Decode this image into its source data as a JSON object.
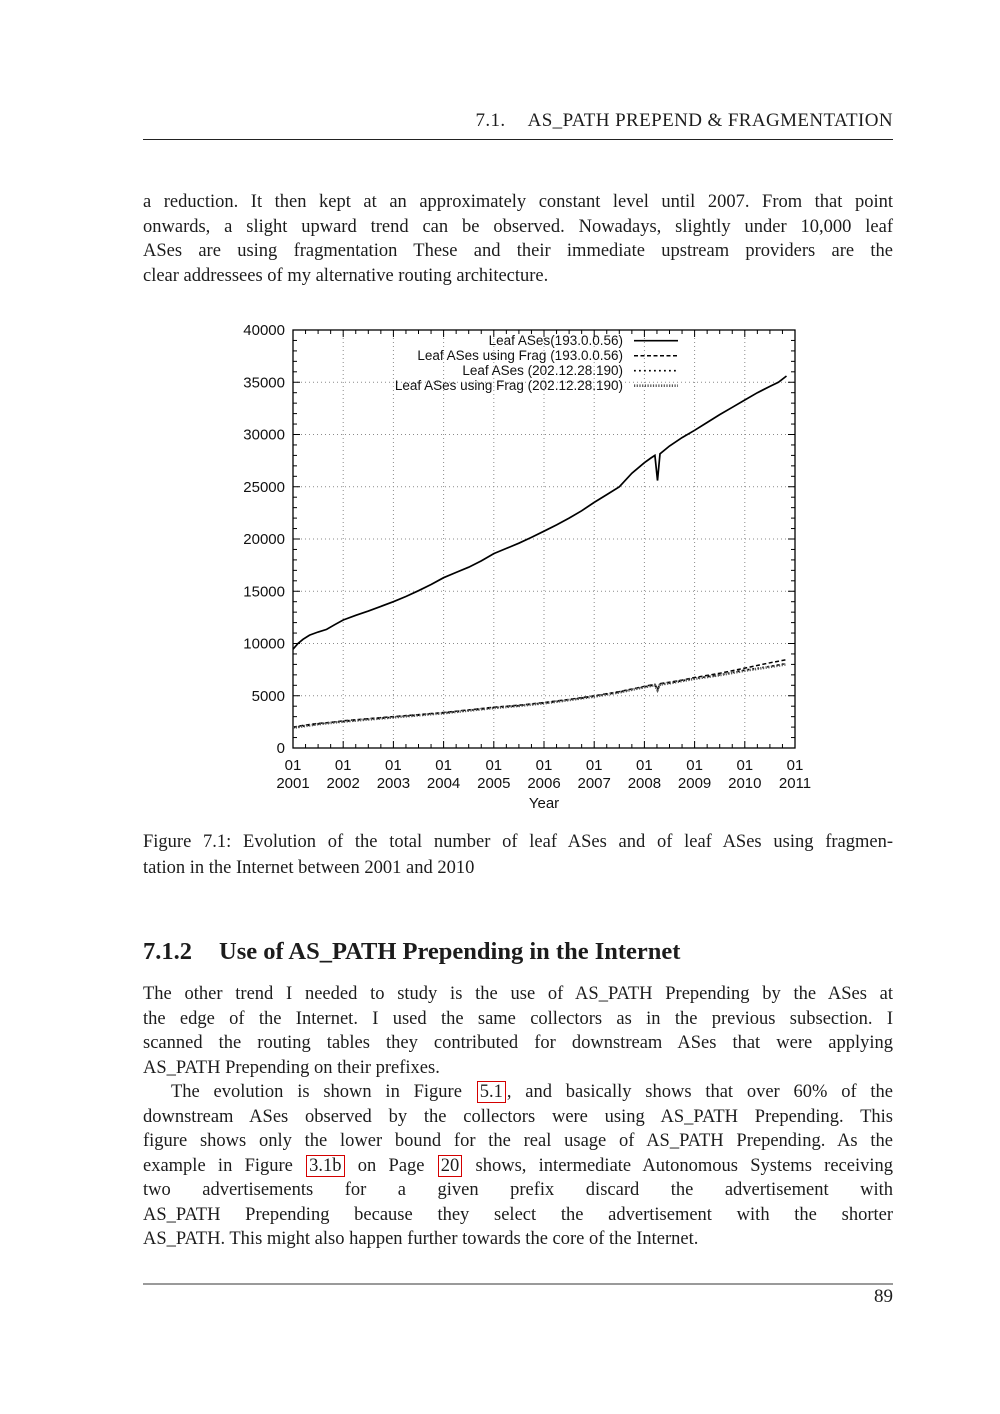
{
  "header": {
    "section_number": "7.1.",
    "title": "AS_PATH PREPEND & FRAGMENTATION"
  },
  "footer": {
    "page_number": "89"
  },
  "colors": {
    "text": "#1c1c1c",
    "link_box": "#d40000",
    "footer_rule": "#9a9a9a",
    "header_rule": "#222222",
    "grid": "#8a8a8a",
    "densedot_line": "#555555"
  },
  "paragraphs": {
    "p1": {
      "lines": [
        {
          "segments": [
            {
              "t": "a reduction. It then kept at an approximately constant level until 2007. From that point"
            }
          ]
        },
        {
          "segments": [
            {
              "t": "onwards, a slight upward trend can be observed. Nowadays, slightly under 10,000 leaf"
            }
          ]
        },
        {
          "segments": [
            {
              "t": "ASes are using fragmentation These and their immediate upstream providers are the"
            }
          ]
        },
        {
          "segments": [
            {
              "t": "clear addressees of my alternative routing architecture."
            }
          ]
        }
      ]
    },
    "p2": {
      "lines": [
        {
          "segments": [
            {
              "t": "The other trend I needed to study is the use of AS_PATH Prepending by the ASes at"
            }
          ]
        },
        {
          "segments": [
            {
              "t": "the edge of the Internet. I used the same collectors as in the previous subsection. I"
            }
          ]
        },
        {
          "segments": [
            {
              "t": "scanned the routing tables they contributed for downstream ASes that were applying"
            }
          ]
        },
        {
          "segments": [
            {
              "t": "AS_PATH Prepending on their prefixes."
            }
          ]
        }
      ]
    },
    "p3": {
      "lines": [
        {
          "indent": true,
          "segments": [
            {
              "t": "The evolution is shown in Figure "
            },
            {
              "t": "5.1",
              "ref": true
            },
            {
              "t": ", and basically shows that over 60% of the"
            }
          ]
        },
        {
          "segments": [
            {
              "t": "downstream ASes observed by the collectors were using AS_PATH Prepending. This"
            }
          ]
        },
        {
          "segments": [
            {
              "t": "figure shows only the lower bound for the real usage of AS_PATH Prepending. As the"
            }
          ]
        },
        {
          "segments": [
            {
              "t": "example in Figure "
            },
            {
              "t": "3.1b",
              "ref": true
            },
            {
              "t": " on Page "
            },
            {
              "t": "20",
              "ref": true
            },
            {
              "t": " shows, intermediate Autonomous Systems receiving"
            }
          ]
        },
        {
          "segments": [
            {
              "t": "two advertisements for a given prefix discard the advertisement with"
            }
          ]
        },
        {
          "segments": [
            {
              "t": "AS_PATH Prepending because they select the advertisement with the shorter"
            }
          ]
        },
        {
          "segments": [
            {
              "t": "AS_PATH. This might also happen further towards the core of the Internet."
            }
          ]
        }
      ]
    }
  },
  "figure": {
    "caption": {
      "lines": [
        {
          "segments": [
            {
              "t": "Figure 7.1: Evolution of the total number of leaf ASes and of leaf ASes using fragmen-"
            }
          ]
        },
        {
          "segments": [
            {
              "t": "tation in the Internet between 2001 and 2010"
            }
          ]
        }
      ]
    }
  },
  "section": {
    "number": "7.1.2",
    "title": "Use of AS_PATH Prepending in the Internet"
  },
  "chart_data": {
    "type": "line",
    "title": "",
    "xlabel": "Year",
    "ylabel": "",
    "xlim": [
      2001,
      2011
    ],
    "ylim": [
      0,
      40000
    ],
    "x_major_step": 1,
    "x_minor_step": 0.25,
    "y_major_step": 5000,
    "y_minor_step": 1000,
    "x_tick_top": "01",
    "grid": true,
    "legend_position": "top-right",
    "series": [
      {
        "name": "Leaf ASes(193.0.0.56)",
        "style": "solid",
        "points": [
          [
            2001.0,
            9450
          ],
          [
            2001.1,
            10000
          ],
          [
            2001.2,
            10400
          ],
          [
            2001.33,
            10800
          ],
          [
            2001.5,
            11100
          ],
          [
            2001.67,
            11350
          ],
          [
            2001.83,
            11800
          ],
          [
            2002.0,
            12250
          ],
          [
            2002.25,
            12700
          ],
          [
            2002.5,
            13100
          ],
          [
            2002.75,
            13550
          ],
          [
            2003.0,
            14000
          ],
          [
            2003.25,
            14500
          ],
          [
            2003.5,
            15050
          ],
          [
            2003.75,
            15650
          ],
          [
            2004.0,
            16300
          ],
          [
            2004.25,
            16800
          ],
          [
            2004.5,
            17300
          ],
          [
            2004.75,
            17900
          ],
          [
            2005.0,
            18600
          ],
          [
            2005.25,
            19100
          ],
          [
            2005.5,
            19600
          ],
          [
            2005.75,
            20150
          ],
          [
            2006.0,
            20750
          ],
          [
            2006.25,
            21350
          ],
          [
            2006.5,
            22000
          ],
          [
            2006.75,
            22700
          ],
          [
            2007.0,
            23500
          ],
          [
            2007.25,
            24250
          ],
          [
            2007.5,
            25000
          ],
          [
            2007.75,
            26300
          ],
          [
            2008.0,
            27300
          ],
          [
            2008.13,
            27750
          ],
          [
            2008.21,
            28000
          ],
          [
            2008.26,
            25600
          ],
          [
            2008.31,
            28150
          ],
          [
            2008.5,
            28900
          ],
          [
            2008.75,
            29700
          ],
          [
            2009.0,
            30400
          ],
          [
            2009.25,
            31150
          ],
          [
            2009.5,
            31900
          ],
          [
            2009.75,
            32600
          ],
          [
            2010.0,
            33300
          ],
          [
            2010.25,
            34000
          ],
          [
            2010.5,
            34600
          ],
          [
            2010.67,
            35000
          ],
          [
            2010.83,
            35600
          ]
        ]
      },
      {
        "name": "Leaf ASes using Frag (193.0.0.56)",
        "style": "dashed",
        "points": [
          [
            2001.0,
            2000
          ],
          [
            2001.25,
            2200
          ],
          [
            2001.5,
            2350
          ],
          [
            2001.75,
            2450
          ],
          [
            2002.0,
            2600
          ],
          [
            2002.5,
            2800
          ],
          [
            2003.0,
            3000
          ],
          [
            2003.5,
            3200
          ],
          [
            2004.0,
            3400
          ],
          [
            2004.5,
            3650
          ],
          [
            2005.0,
            3900
          ],
          [
            2005.5,
            4100
          ],
          [
            2006.0,
            4350
          ],
          [
            2006.5,
            4650
          ],
          [
            2007.0,
            5000
          ],
          [
            2007.5,
            5400
          ],
          [
            2007.75,
            5650
          ],
          [
            2008.0,
            5900
          ],
          [
            2008.21,
            6100
          ],
          [
            2008.26,
            5600
          ],
          [
            2008.31,
            6150
          ],
          [
            2008.5,
            6300
          ],
          [
            2008.75,
            6500
          ],
          [
            2009.0,
            6750
          ],
          [
            2009.5,
            7150
          ],
          [
            2010.0,
            7650
          ],
          [
            2010.5,
            8150
          ],
          [
            2010.83,
            8450
          ]
        ]
      },
      {
        "name": "Leaf ASes (202.12.28.190)",
        "style": "dotted",
        "points": [
          [
            2001.0,
            1950
          ],
          [
            2001.5,
            2300
          ],
          [
            2002.0,
            2550
          ],
          [
            2002.5,
            2750
          ],
          [
            2003.0,
            2950
          ],
          [
            2003.5,
            3150
          ],
          [
            2004.0,
            3350
          ],
          [
            2004.5,
            3600
          ],
          [
            2005.0,
            3850
          ],
          [
            2005.5,
            4050
          ],
          [
            2006.0,
            4300
          ],
          [
            2006.5,
            4600
          ],
          [
            2007.0,
            4950
          ],
          [
            2007.5,
            5350
          ],
          [
            2008.0,
            5850
          ],
          [
            2008.21,
            6050
          ],
          [
            2008.26,
            5570
          ],
          [
            2008.31,
            6100
          ],
          [
            2008.5,
            6220
          ],
          [
            2009.0,
            6650
          ],
          [
            2009.5,
            7000
          ],
          [
            2010.0,
            7450
          ],
          [
            2010.5,
            7800
          ],
          [
            2010.83,
            8100
          ]
        ]
      },
      {
        "name": "Leaf ASes using Frag (202.12.28.190)",
        "style": "densedot",
        "points": [
          [
            2001.0,
            1930
          ],
          [
            2001.5,
            2280
          ],
          [
            2002.0,
            2530
          ],
          [
            2002.5,
            2730
          ],
          [
            2003.0,
            2930
          ],
          [
            2003.5,
            3130
          ],
          [
            2004.0,
            3330
          ],
          [
            2004.5,
            3580
          ],
          [
            2005.0,
            3830
          ],
          [
            2005.5,
            4030
          ],
          [
            2006.0,
            4280
          ],
          [
            2006.5,
            4580
          ],
          [
            2007.0,
            4920
          ],
          [
            2007.5,
            5320
          ],
          [
            2008.0,
            5820
          ],
          [
            2008.21,
            6020
          ],
          [
            2008.26,
            5540
          ],
          [
            2008.31,
            6070
          ],
          [
            2008.5,
            6190
          ],
          [
            2009.0,
            6620
          ],
          [
            2009.5,
            6970
          ],
          [
            2010.0,
            7400
          ],
          [
            2010.5,
            7750
          ],
          [
            2010.83,
            8020
          ]
        ]
      }
    ]
  }
}
